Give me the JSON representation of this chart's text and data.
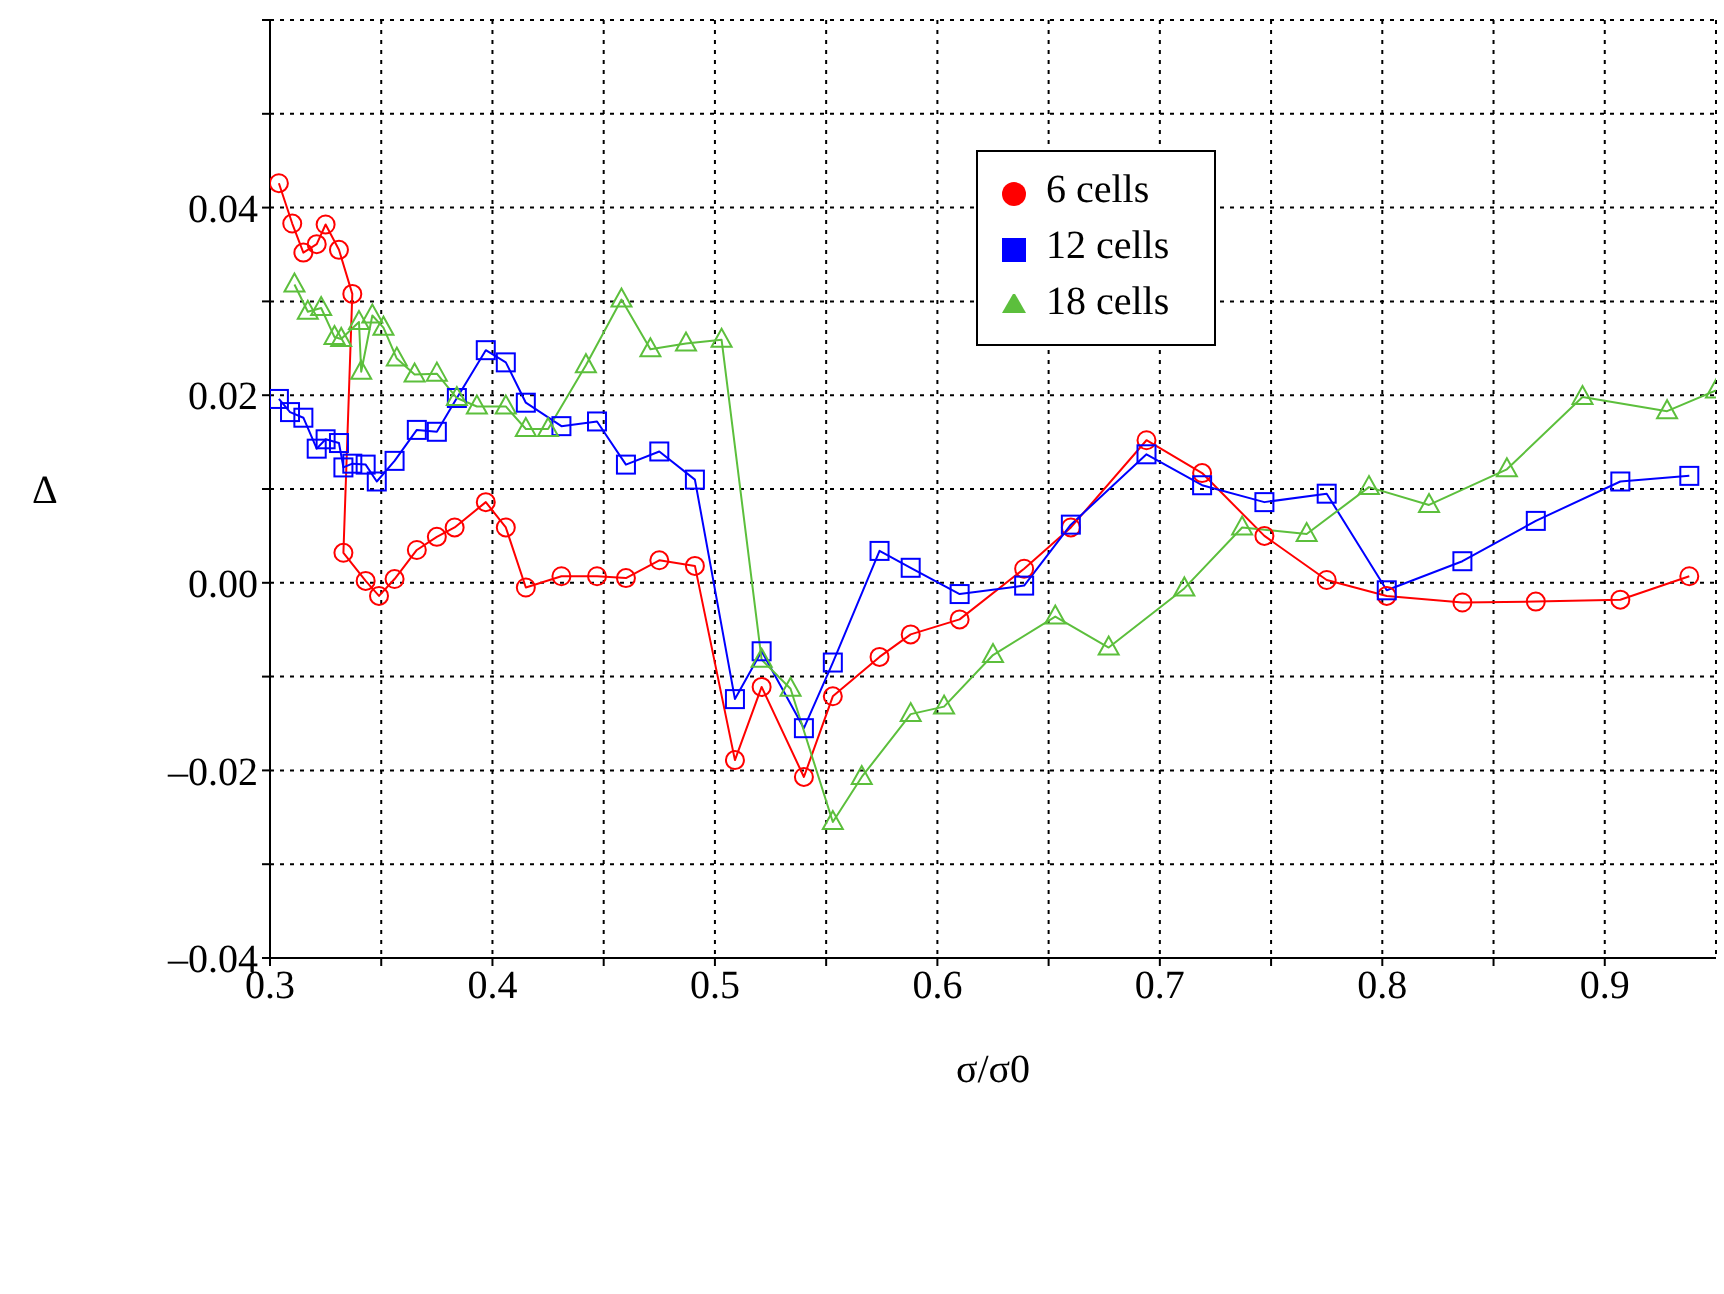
{
  "chart_data": {
    "type": "line",
    "xlabel": "σ/σ0",
    "ylabel": "Δ",
    "xlim": [
      0.3,
      0.95
    ],
    "ylim": [
      -0.04,
      0.06
    ],
    "xticks": [
      0.3,
      {
        "value": 0.35,
        "label": null
      },
      0.4,
      {
        "value": 0.45,
        "label": null
      },
      0.5,
      {
        "value": 0.55,
        "label": null
      },
      0.6,
      {
        "value": 0.65,
        "label": null
      },
      0.7,
      {
        "value": 0.75,
        "label": null
      },
      0.8,
      {
        "value": 0.85,
        "label": null
      },
      0.9
    ],
    "yticks": [
      {
        "value": -0.04,
        "label": "–0.04"
      },
      {
        "value": -0.03,
        "label": null
      },
      {
        "value": -0.02,
        "label": "–0.02"
      },
      {
        "value": -0.01,
        "label": null
      },
      {
        "value": 0,
        "label": "0.00"
      },
      {
        "value": 0.01,
        "label": null
      },
      0.02,
      {
        "value": 0.03,
        "label": null
      },
      0.04,
      {
        "value": 0.05,
        "label": null
      },
      {
        "value": 0.06,
        "label": null
      }
    ],
    "grid": true,
    "legend": "top right",
    "line_style": "solid",
    "series": [
      {
        "name": "6 cells",
        "color": "#ff0000",
        "marker": "circle",
        "x": [
          0.304,
          0.31,
          0.315,
          0.321,
          0.325,
          0.331,
          0.337,
          0.333,
          0.343,
          0.349,
          0.356,
          0.366,
          0.375,
          0.383,
          0.397,
          0.406,
          0.415,
          0.431,
          0.447,
          0.46,
          0.475,
          0.491,
          0.509,
          0.521,
          0.54,
          0.553,
          0.574,
          0.588,
          0.61,
          0.639,
          0.66,
          0.694,
          0.719,
          0.747,
          0.775,
          0.802,
          0.836,
          0.869,
          0.907,
          0.938
        ],
        "values": [
          0.0426,
          0.0383,
          0.0352,
          0.0361,
          0.0382,
          0.0355,
          0.0308,
          0.0032,
          0.0002,
          -0.0014,
          0.0004,
          0.0035,
          0.0049,
          0.0059,
          0.0086,
          0.0059,
          -0.0005,
          0.0007,
          0.0007,
          0.0005,
          0.0024,
          0.0018,
          -0.0189,
          -0.0111,
          -0.0207,
          -0.0121,
          -0.0079,
          -0.0055,
          -0.0039,
          0.0015,
          0.0059,
          0.0152,
          0.0117,
          0.005,
          0.0003,
          -0.0014,
          -0.0021,
          -0.002,
          -0.0018,
          0.0007
        ]
      },
      {
        "name": "12 cells",
        "color": "#0000ff",
        "marker": "square",
        "x": [
          0.304,
          0.309,
          0.315,
          0.321,
          0.325,
          0.331,
          0.333,
          0.337,
          0.343,
          0.348,
          0.356,
          0.366,
          0.375,
          0.384,
          0.397,
          0.406,
          0.415,
          0.431,
          0.447,
          0.46,
          0.475,
          0.491,
          0.509,
          0.521,
          0.54,
          0.553,
          0.574,
          0.588,
          0.61,
          0.639,
          0.66,
          0.694,
          0.719,
          0.747,
          0.775,
          0.802,
          0.836,
          0.869,
          0.907,
          0.938
        ],
        "values": [
          0.0196,
          0.0182,
          0.0176,
          0.0143,
          0.0153,
          0.0149,
          0.0123,
          0.0127,
          0.0126,
          0.0108,
          0.013,
          0.0163,
          0.0161,
          0.0197,
          0.0248,
          0.0235,
          0.0192,
          0.0167,
          0.0172,
          0.0126,
          0.014,
          0.011,
          -0.0124,
          -0.0073,
          -0.0155,
          -0.0085,
          0.0034,
          0.0016,
          -0.0012,
          -0.0003,
          0.0062,
          0.0137,
          0.0104,
          0.0086,
          0.0095,
          -0.0008,
          0.0023,
          0.0066,
          0.0108,
          0.0114
        ]
      },
      {
        "name": "18 cells",
        "color": "#5cbf3c",
        "marker": "triangle",
        "x": [
          0.311,
          0.317,
          0.323,
          0.329,
          0.332,
          0.34,
          0.341,
          0.346,
          0.351,
          0.357,
          0.365,
          0.375,
          0.384,
          0.393,
          0.406,
          0.415,
          0.425,
          0.442,
          0.458,
          0.471,
          0.487,
          0.503,
          0.521,
          0.534,
          0.553,
          0.566,
          0.588,
          0.603,
          0.625,
          0.653,
          0.677,
          0.711,
          0.737,
          0.766,
          0.794,
          0.821,
          0.856,
          0.89,
          0.928,
          0.95
        ],
        "values": [
          0.0318,
          0.0289,
          0.0293,
          0.0262,
          0.026,
          0.0278,
          0.0225,
          0.0285,
          0.0272,
          0.0239,
          0.0222,
          0.0223,
          0.0197,
          0.0188,
          0.0188,
          0.0164,
          0.0164,
          0.0232,
          0.0302,
          0.0249,
          0.0255,
          0.0259,
          -0.0082,
          -0.0113,
          -0.0255,
          -0.0207,
          -0.014,
          -0.0132,
          -0.0077,
          -0.0036,
          -0.0069,
          -0.0006,
          0.0059,
          0.0052,
          0.0102,
          0.0083,
          0.0121,
          0.0198,
          0.0183,
          0.0205
        ]
      }
    ]
  }
}
